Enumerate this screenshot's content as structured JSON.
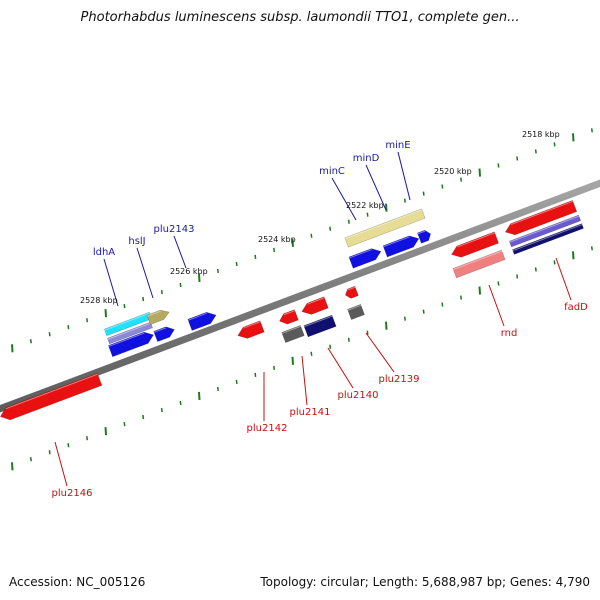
{
  "map": {
    "title": "Photorhabdus luminescens subsp. laumondii TTO1, complete gen...",
    "accession": "Accession: NC_005126",
    "summary": "Topology: circular; Length: 5,688,987 bp; Genes: 4,790"
  },
  "scale_labels": [
    "2518 kbp",
    "2520 kbp",
    "2522 kbp",
    "2524 kbp",
    "2526 kbp",
    "2528 kbp"
  ],
  "forward_genes": [
    "minE",
    "minD",
    "minC",
    "plu2143",
    "hslJ",
    "ldhA"
  ],
  "reverse_genes": [
    "fadD",
    "rnd",
    "plu2139",
    "plu2140",
    "plu2141",
    "plu2142",
    "plu2146"
  ],
  "colors": {
    "backbone": "#808080",
    "forward_label": "#1a1aa8",
    "reverse_label": "#c41010",
    "tick": "#1e7a1e",
    "gene_blue": "#1010e0",
    "gene_red": "#e81010",
    "gene_khaki": "#e6dc96",
    "gene_pink": "#f08080",
    "gene_navy": "#101070",
    "gene_gray": "#5a5a5a",
    "gene_cyan": "#20e0ff",
    "gene_slate": "#6a5acd"
  }
}
